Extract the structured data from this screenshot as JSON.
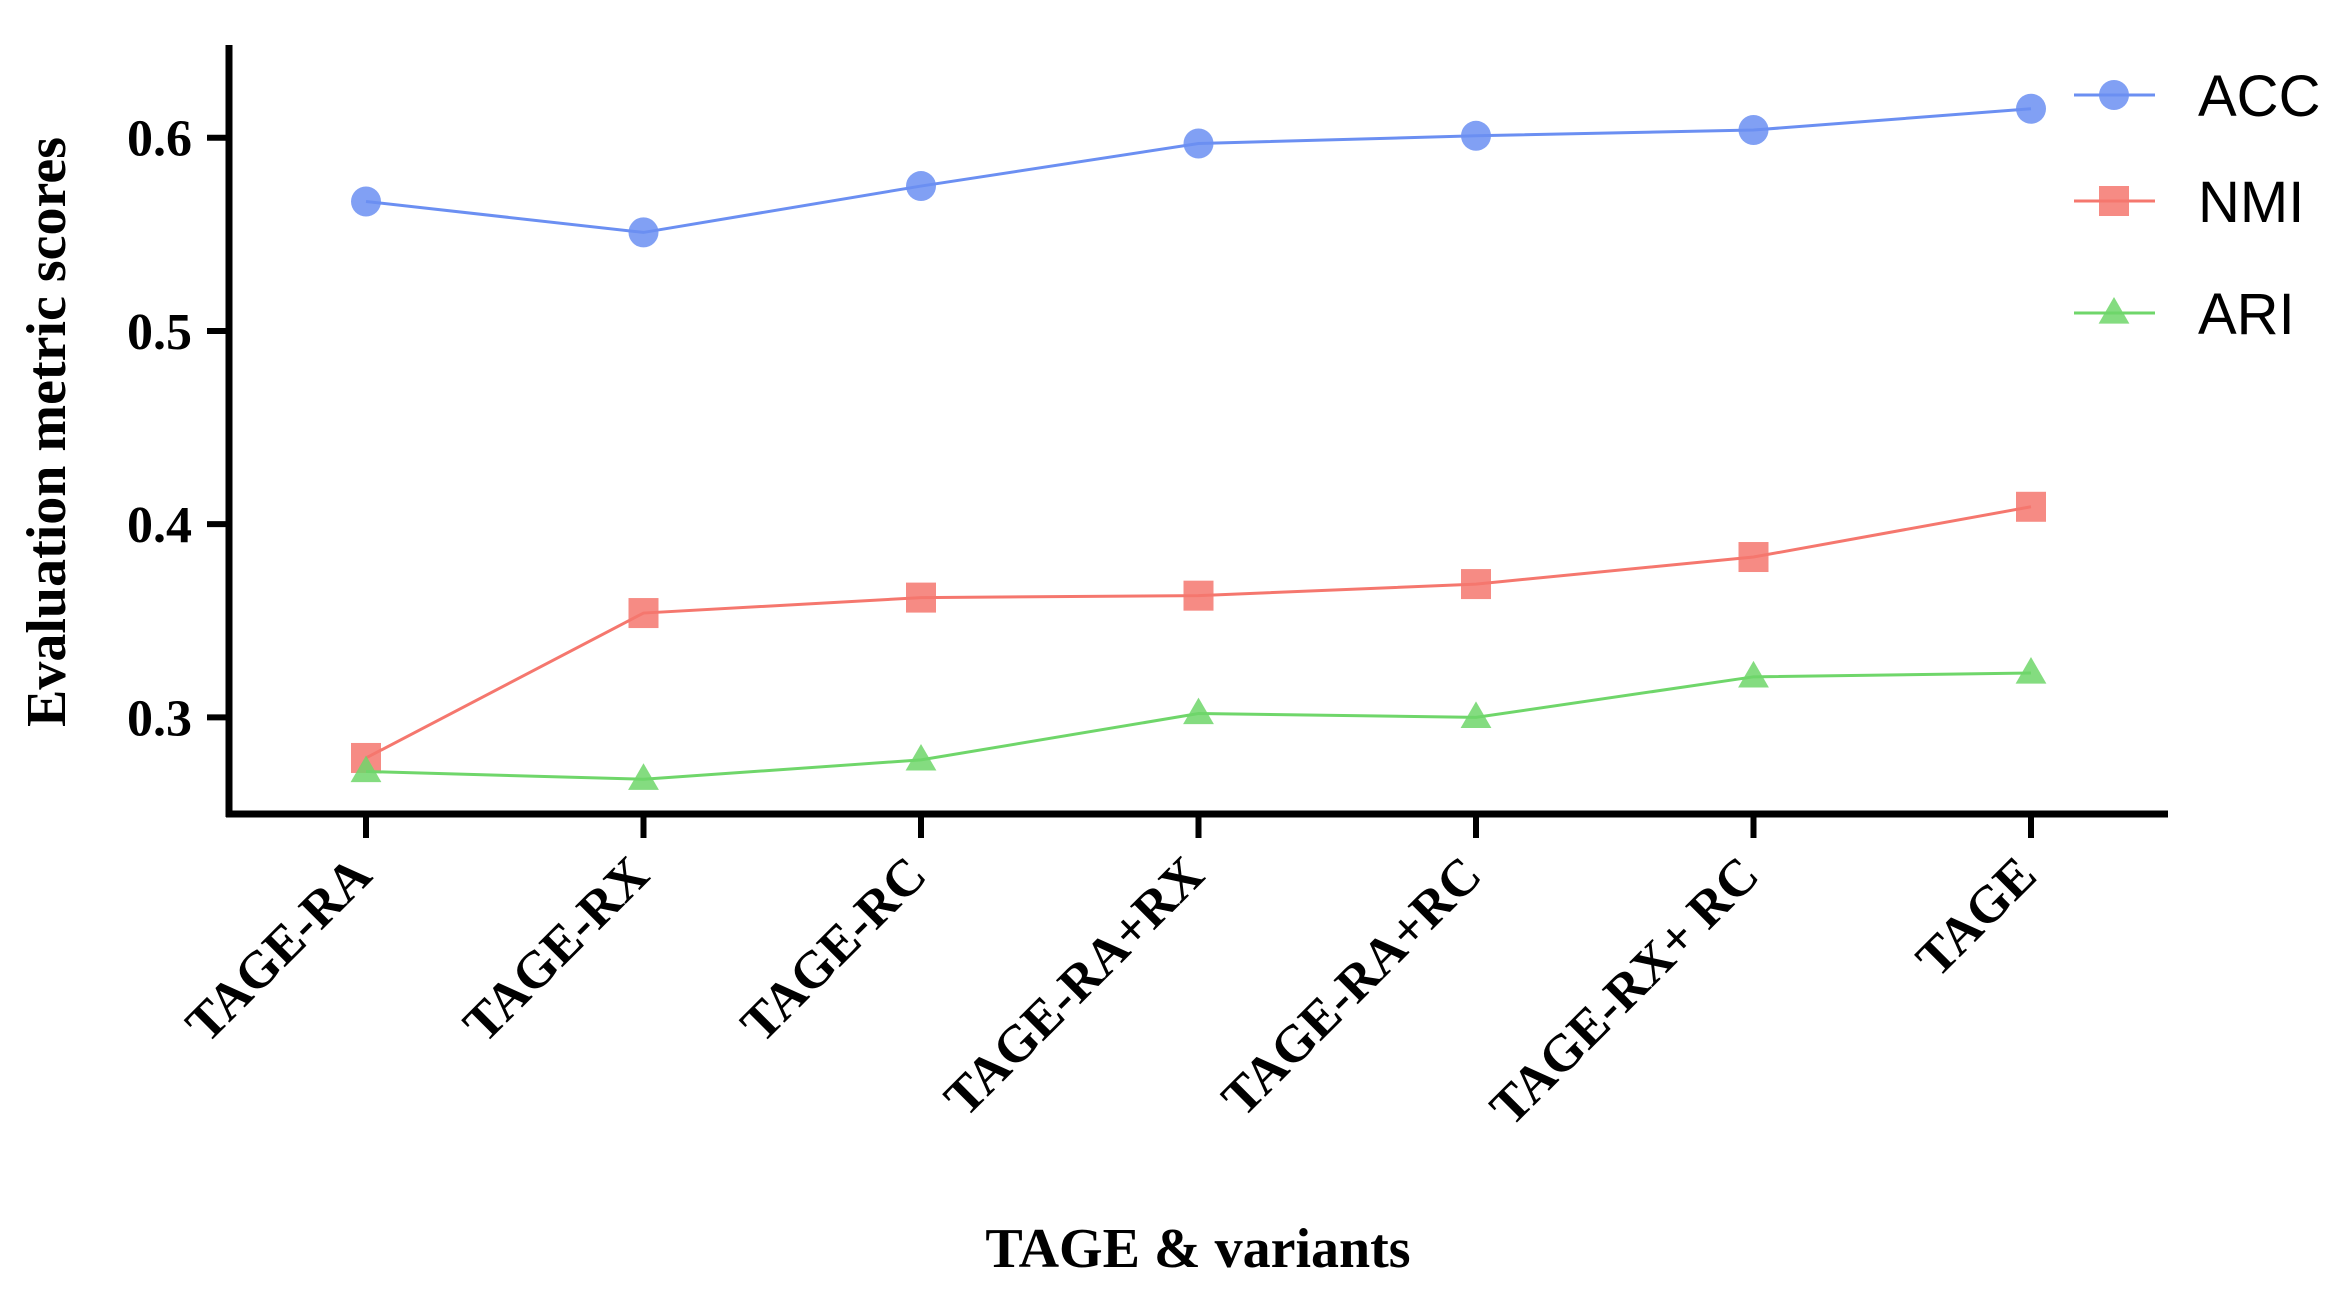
{
  "chart_data": {
    "type": "line",
    "title": "",
    "xlabel": "TAGE & variants",
    "ylabel": "Evaluation metric scores",
    "categories": [
      "TAGE-RA",
      "TAGE-RX",
      "TAGE-RC",
      "TAGE-RA+RX",
      "TAGE-RA+RC",
      "TAGE-RX+ RC",
      "TAGE"
    ],
    "ylim": [
      0.25,
      0.648
    ],
    "yticks": [
      0.3,
      0.4,
      0.5,
      0.6
    ],
    "ytick_labels": [
      "0.3",
      "0.4",
      "0.5",
      "0.6"
    ],
    "grid": false,
    "legend_position": "top-right",
    "series": [
      {
        "name": "ACC",
        "marker": "circle",
        "color": "#6b8ff2",
        "values": [
          0.567,
          0.551,
          0.575,
          0.597,
          0.601,
          0.604,
          0.615
        ]
      },
      {
        "name": "NMI",
        "marker": "square",
        "color": "#f5776e",
        "values": [
          0.279,
          0.354,
          0.362,
          0.363,
          0.369,
          0.383,
          0.409
        ]
      },
      {
        "name": "ARI",
        "marker": "triangle",
        "color": "#6fd66a",
        "values": [
          0.272,
          0.268,
          0.278,
          0.302,
          0.3,
          0.321,
          0.323
        ]
      }
    ]
  }
}
